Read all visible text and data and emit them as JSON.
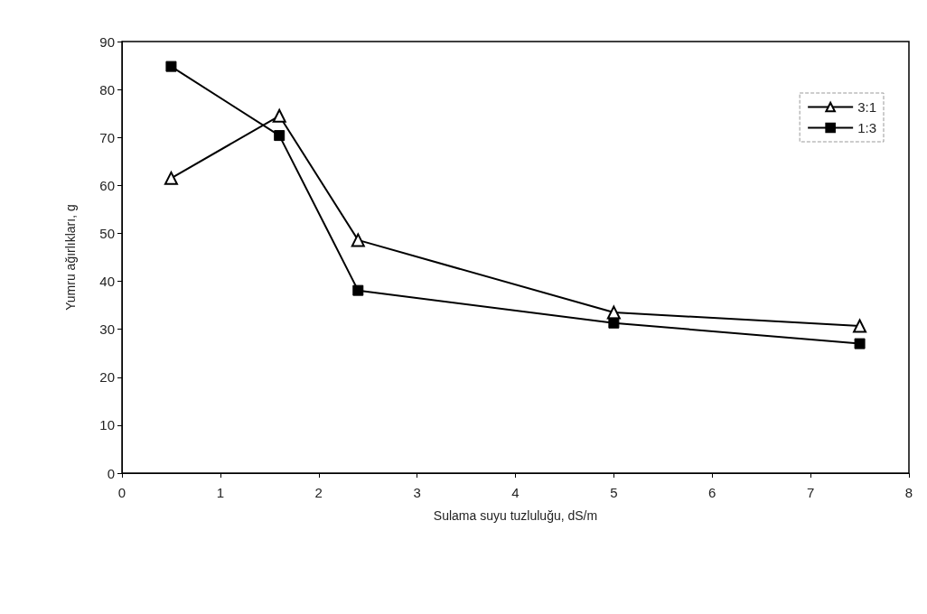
{
  "chart_data": {
    "type": "line",
    "xlabel": "Sulama suyu tuzluluğu, dS/m",
    "ylabel": "Yumru ağırlıkları, g",
    "x": [
      0.5,
      1.6,
      2.4,
      5,
      7.5
    ],
    "series": [
      {
        "name": "3:1",
        "color": "#000000",
        "marker": "triangle",
        "values": [
          61.5,
          74.5,
          48.6,
          33.5,
          30.7
        ]
      },
      {
        "name": "1:3",
        "color": "#000000",
        "marker": "square",
        "values": [
          84.8,
          70.4,
          38.1,
          31.3,
          27.0
        ]
      }
    ],
    "xlim": [
      0,
      8
    ],
    "xticks": [
      0,
      1,
      2,
      3,
      4,
      5,
      6,
      7,
      8
    ],
    "ylim": [
      0,
      90
    ],
    "yticks": [
      0,
      10,
      20,
      30,
      40,
      50,
      60,
      70,
      80,
      90
    ],
    "grid": false,
    "legend": "top right",
    "line_style": "solid"
  }
}
